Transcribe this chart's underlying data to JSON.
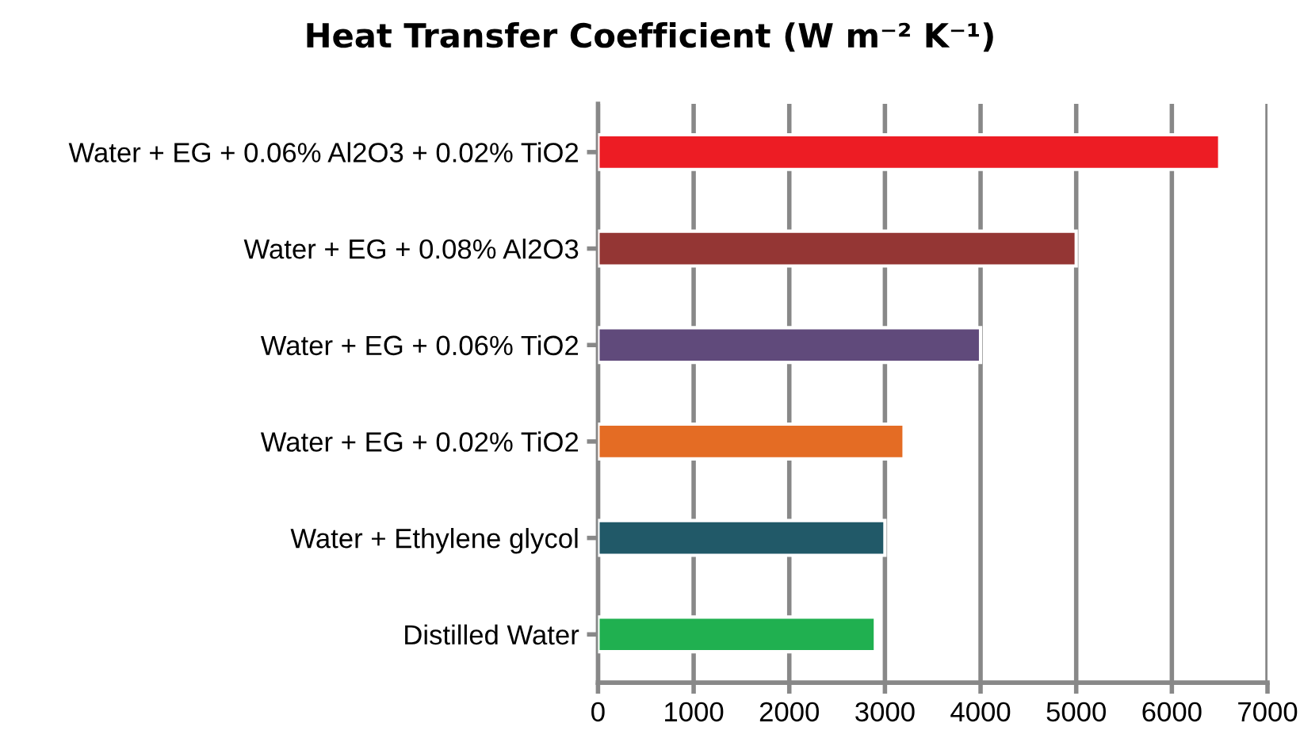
{
  "chart_data": {
    "type": "bar",
    "orientation": "horizontal",
    "title": "Heat Transfer Coefficient (W m⁻² K⁻¹)",
    "categories": [
      "Water + EG + 0.06% Al2O3 + 0.02% TiO2",
      "Water + EG + 0.08% Al2O3",
      "Water + EG + 0.06% TiO2",
      "Water + EG + 0.02% TiO2",
      "Water + Ethylene glycol",
      "Distilled Water"
    ],
    "values": [
      6500,
      5000,
      4000,
      3200,
      3000,
      2900
    ],
    "colors": [
      "#ed1c24",
      "#943634",
      "#604a7b",
      "#e46c24",
      "#215968",
      "#20b050"
    ],
    "xlim": [
      0,
      7000
    ],
    "xticks": [
      0,
      1000,
      2000,
      3000,
      4000,
      5000,
      6000,
      7000
    ],
    "grid": "x"
  }
}
